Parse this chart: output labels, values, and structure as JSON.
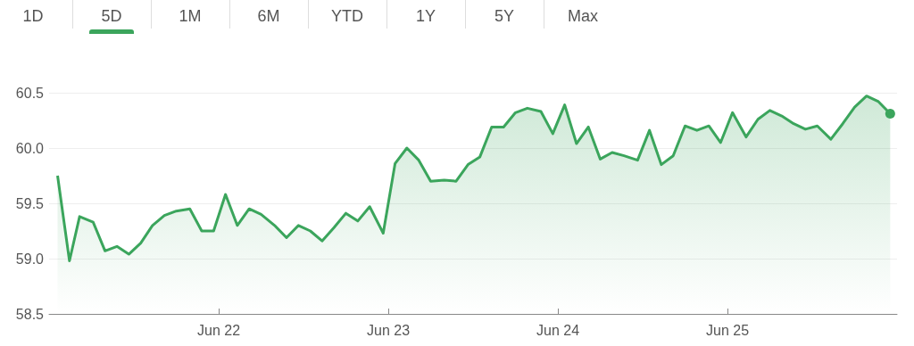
{
  "chart_data": {
    "type": "area",
    "color": "#3ba55c",
    "marker": "none",
    "grid": "y",
    "annotations": [
      "1D",
      "5D",
      "1M",
      "6M",
      "YTD",
      "1Y",
      "5Y",
      "Max"
    ],
    "x": [
      "--06-21T01:12",
      "--06-21T02:53",
      "--06-21T04:19",
      "--06-21T06:14",
      "--06-21T07:55",
      "--06-21T09:36",
      "--06-21T11:17",
      "--06-21T12:58",
      "--06-21T14:38",
      "--06-21T16:19",
      "--06-21T18:00",
      "--06-21T19:55",
      "--06-21T21:36",
      "--06-21T23:17",
      "--06-22T00:58",
      "--06-22T02:38",
      "--06-22T04:19",
      "--06-22T06:00",
      "--06-22T07:55",
      "--06-22T09:36",
      "--06-22T11:17",
      "--06-22T12:58",
      "--06-22T14:38",
      "--06-22T16:19",
      "--06-22T18:00",
      "--06-22T19:41",
      "--06-22T21:22",
      "--06-22T23:17",
      "--06-23T00:58",
      "--06-23T02:38",
      "--06-23T04:19",
      "--06-23T06:00",
      "--06-23T07:55",
      "--06-23T09:36",
      "--06-23T11:17",
      "--06-23T12:58",
      "--06-23T14:38",
      "--06-23T16:19",
      "--06-23T18:00",
      "--06-23T19:41",
      "--06-23T21:36",
      "--06-23T23:17",
      "--06-24T00:58",
      "--06-24T02:38",
      "--06-24T04:19",
      "--06-24T06:00",
      "--06-24T07:41",
      "--06-24T09:22",
      "--06-24T11:17",
      "--06-24T12:58",
      "--06-24T14:38",
      "--06-24T16:19",
      "--06-24T18:00",
      "--06-24T19:41",
      "--06-24T21:22",
      "--06-24T23:02",
      "--06-25T00:43",
      "--06-25T02:38",
      "--06-25T04:19",
      "--06-25T06:00",
      "--06-25T07:41",
      "--06-25T09:22",
      "--06-25T11:02",
      "--06-25T12:43",
      "--06-25T14:38",
      "--06-25T16:19",
      "--06-25T18:00",
      "--06-25T19:41",
      "--06-25T21:22",
      "--06-25T23:02"
    ],
    "values": [
      59.75,
      58.98,
      59.38,
      59.33,
      59.07,
      59.11,
      59.04,
      59.14,
      59.3,
      59.39,
      59.43,
      59.45,
      59.25,
      59.25,
      59.58,
      59.3,
      59.45,
      59.4,
      59.3,
      59.19,
      59.3,
      59.25,
      59.16,
      59.28,
      59.41,
      59.34,
      59.47,
      59.23,
      59.86,
      60.0,
      59.89,
      59.7,
      59.71,
      59.7,
      59.85,
      59.92,
      60.19,
      60.19,
      60.32,
      60.36,
      60.33,
      60.13,
      60.39,
      60.04,
      60.19,
      59.9,
      59.96,
      59.93,
      59.89,
      60.16,
      59.85,
      59.93,
      60.2,
      60.16,
      60.2,
      60.05,
      60.32,
      60.1,
      60.26,
      60.34,
      60.29,
      60.22,
      60.17,
      60.2,
      60.08,
      60.22,
      60.37,
      60.47,
      60.42,
      60.31
    ],
    "xlim": [
      "--06-21",
      "--06-26"
    ],
    "xticks": [
      {
        "value": "--06-22",
        "label": "Jun 22"
      },
      {
        "value": "--06-23",
        "label": "Jun 23"
      },
      {
        "value": "--06-24",
        "label": "Jun 24"
      },
      {
        "value": "--06-25",
        "label": "Jun 25"
      }
    ],
    "ylim": [
      58.5,
      60.5
    ],
    "yticks": [
      58.5,
      {
        "value": 59,
        "label": "59.0"
      },
      59.5,
      {
        "value": 60,
        "label": "60.0"
      },
      60.5
    ]
  }
}
